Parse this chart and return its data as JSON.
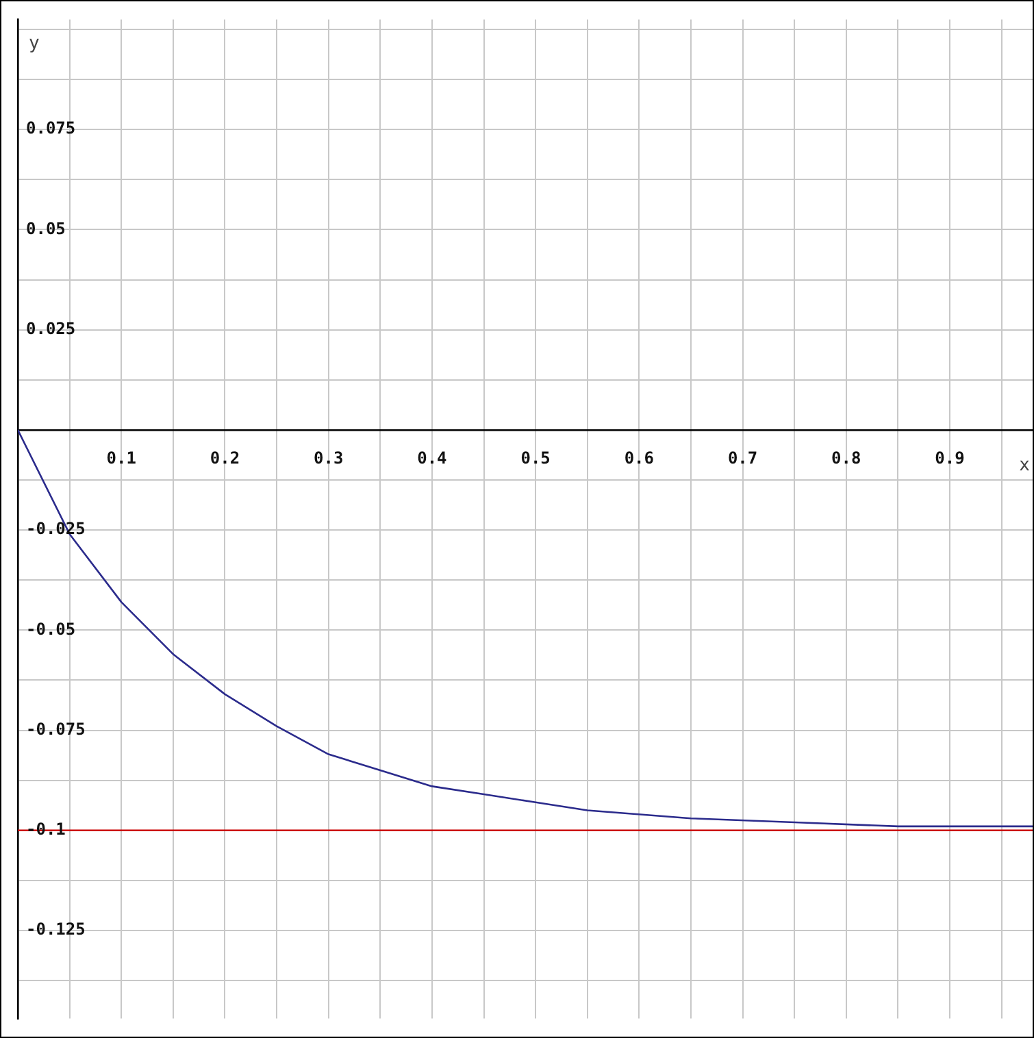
{
  "chart_data": {
    "type": "line",
    "xlabel": "x",
    "ylabel": "y",
    "x": [
      0,
      0.05,
      0.1,
      0.15,
      0.2,
      0.25,
      0.3,
      0.35,
      0.4,
      0.45,
      0.5,
      0.55,
      0.65,
      0.75,
      0.85,
      0.98
    ],
    "series": [
      {
        "color": "#2b2b8c",
        "values": [
          0,
          -0.026,
          -0.043,
          -0.056,
          -0.066,
          -0.074,
          -0.081,
          -0.085,
          -0.089,
          -0.091,
          -0.093,
          -0.095,
          -0.097,
          -0.098,
          -0.099,
          -0.099
        ]
      }
    ],
    "xlim": [
      0,
      0.98
    ],
    "ylim": [
      -0.147,
      0.1025
    ],
    "xticks": [
      {
        "value": 0.05,
        "label": null
      },
      0.1,
      {
        "value": 0.15,
        "label": null
      },
      0.2,
      {
        "value": 0.25,
        "label": null
      },
      0.3,
      {
        "value": 0.35,
        "label": null
      },
      0.4,
      {
        "value": 0.45,
        "label": null
      },
      0.5,
      {
        "value": 0.55,
        "label": null
      },
      0.6,
      {
        "value": 0.65,
        "label": null
      },
      0.7,
      {
        "value": 0.75,
        "label": null
      },
      0.8,
      {
        "value": 0.85,
        "label": null
      },
      0.9,
      {
        "value": 0.95,
        "label": null
      }
    ],
    "yticks": [
      {
        "value": 0.1,
        "label": null
      },
      {
        "value": 0.0875,
        "label": null
      },
      0.075,
      {
        "value": 0.0625,
        "label": null
      },
      0.05,
      {
        "value": 0.0375,
        "label": null
      },
      0.025,
      {
        "value": 0.0125,
        "label": null
      },
      {
        "value": 0,
        "label": null
      },
      {
        "value": -0.0125,
        "label": null
      },
      -0.025,
      {
        "value": -0.0375,
        "label": null
      },
      -0.05,
      {
        "value": -0.0625,
        "label": null
      },
      -0.075,
      {
        "value": -0.0875,
        "label": null
      },
      -0.1,
      {
        "value": -0.1125,
        "label": null
      },
      -0.125,
      {
        "value": -0.1375,
        "label": null
      }
    ],
    "ref_lines": [
      {
        "axis": "y",
        "value": -0.1,
        "color": "#cc0000"
      }
    ],
    "grid": true,
    "marker": "none",
    "line_style": "solid"
  }
}
